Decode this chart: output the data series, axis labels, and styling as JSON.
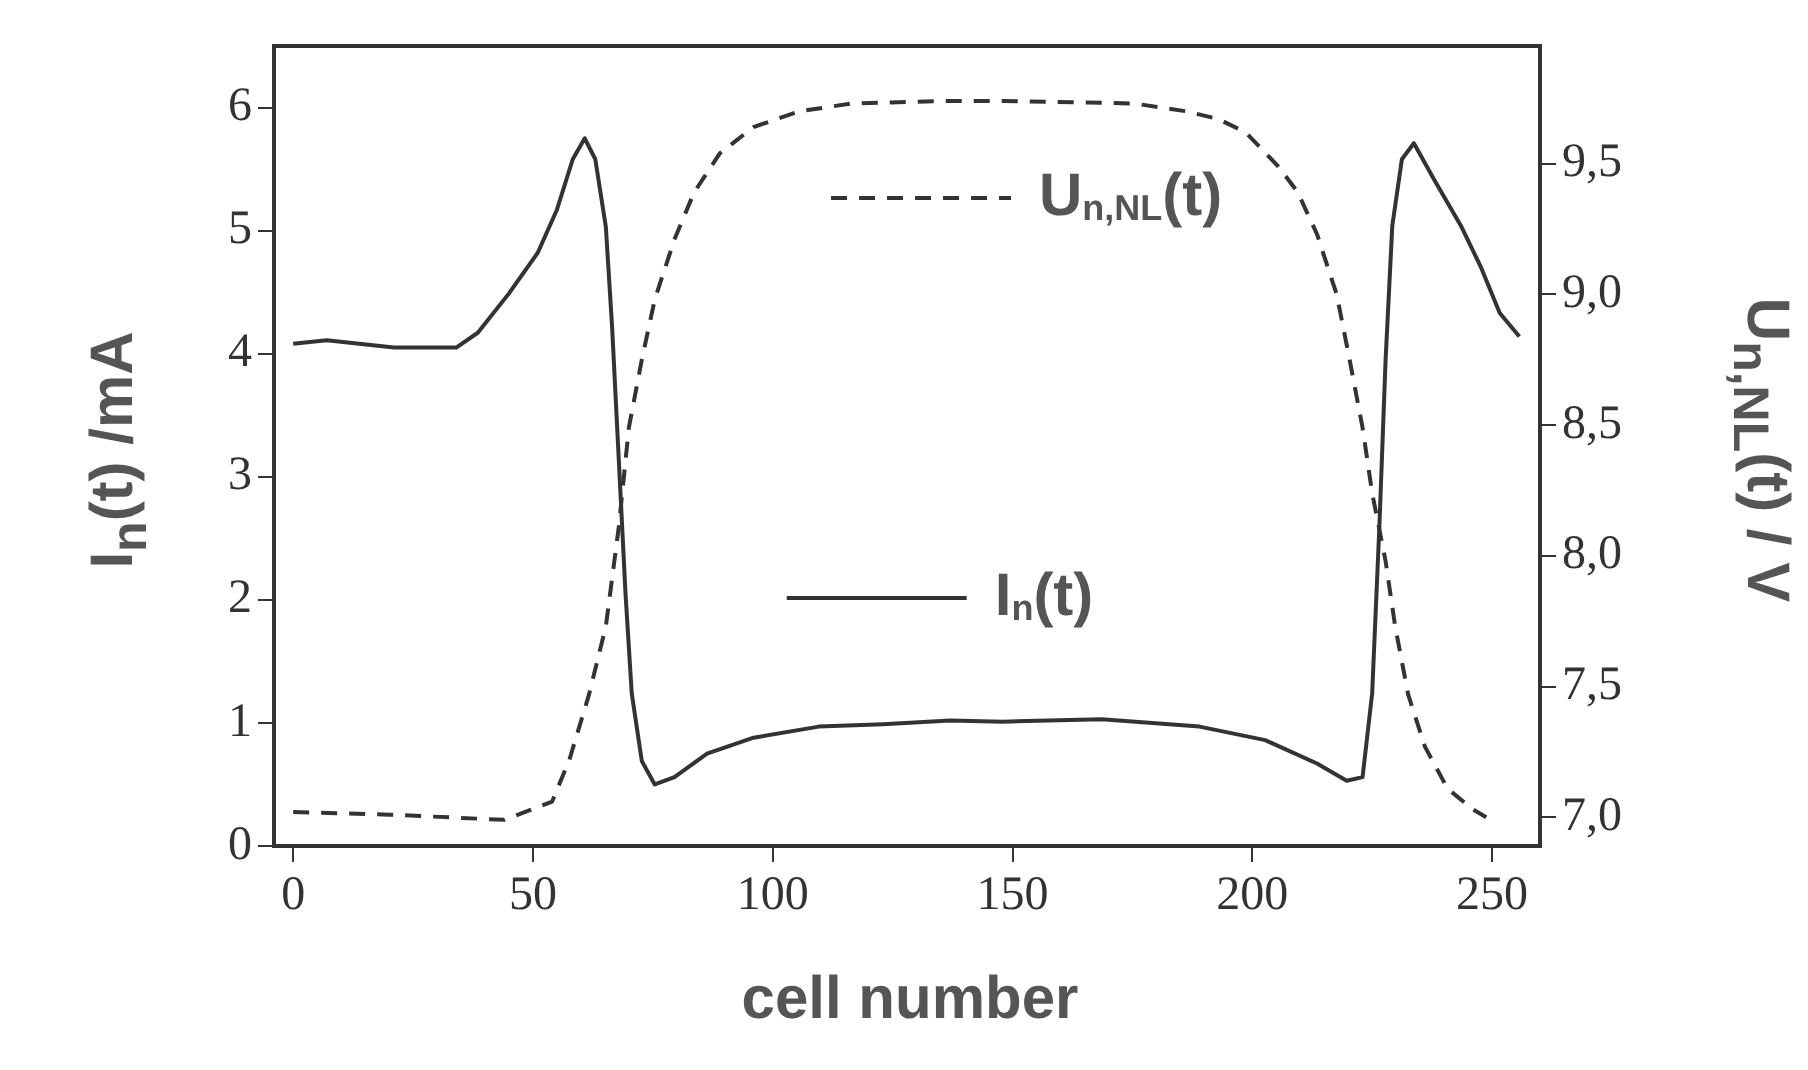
{
  "chart_data": {
    "type": "line",
    "xlabel": "cell number",
    "ylabel": "I$_{n}$(t) /mA",
    "y2label": "U$_{n,NL}$(t) / V",
    "xlim": [
      -4,
      260
    ],
    "xticks": [
      0,
      50,
      100,
      150,
      200,
      250
    ],
    "ylim": [
      0,
      6.5
    ],
    "yticks": [
      0,
      1,
      2,
      3,
      4,
      5,
      6
    ],
    "y2lim": [
      6.89,
      9.95
    ],
    "y2ticks": [
      {
        "value": 7,
        "label": "7,0"
      },
      {
        "value": 7.5,
        "label": "7,5"
      },
      {
        "value": 8,
        "label": "8,0"
      },
      {
        "value": 8.5,
        "label": "8,5"
      },
      {
        "value": 9,
        "label": "9,0"
      },
      {
        "value": 9.5,
        "label": "9,5"
      }
    ],
    "grid": false,
    "legend": "center",
    "marker": "none",
    "series": [
      {
        "name": "I$_{n}$(t)",
        "color": "#333333",
        "line_style": "solid",
        "x": [
          0,
          7,
          21,
          34,
          38.5,
          45,
          51,
          55,
          58.3,
          60.8,
          63,
          65.2,
          66.5,
          67.9,
          69.3,
          70.6,
          72.7,
          75.4,
          79.5,
          86.3,
          96,
          109.6,
          123,
          137,
          148,
          168.6,
          189,
          202.7,
          213.5,
          219.7,
          223,
          225,
          226.5,
          227.8,
          229.2,
          231.2,
          233.7,
          238,
          243.5,
          247.6,
          251.6,
          255.7
        ],
        "values": [
          4.08,
          4.11,
          4.05,
          4.05,
          4.17,
          4.49,
          4.82,
          5.17,
          5.58,
          5.75,
          5.58,
          5.03,
          4.22,
          3.14,
          2.05,
          1.24,
          0.69,
          0.5,
          0.56,
          0.75,
          0.88,
          0.97,
          0.99,
          1.02,
          1.01,
          1.03,
          0.97,
          0.86,
          0.67,
          0.53,
          0.56,
          1.24,
          2.59,
          3.95,
          5.04,
          5.58,
          5.71,
          5.41,
          5.04,
          4.71,
          4.33,
          4.14
        ]
      },
      {
        "name": "U$_{n,NL}$(t)",
        "color": "#333333",
        "line_style": "dashed",
        "axis": "y2",
        "x": [
          0,
          20,
          44,
          54,
          57.6,
          61.7,
          65.2,
          67.9,
          70,
          72.7,
          75.4,
          79.5,
          83.6,
          89,
          96,
          105.5,
          116.4,
          137,
          148,
          175.4,
          186.3,
          193,
          198.6,
          205.4,
          209.5,
          213.5,
          217.6,
          220.3,
          223,
          225,
          227.8,
          229.8,
          232.5,
          236,
          240.7,
          246,
          248.8
        ],
        "values": [
          7.02,
          7.01,
          6.99,
          7.06,
          7.22,
          7.47,
          7.73,
          8.11,
          8.49,
          8.75,
          8.98,
          9.21,
          9.39,
          9.54,
          9.64,
          9.7,
          9.73,
          9.74,
          9.74,
          9.73,
          9.7,
          9.67,
          9.62,
          9.49,
          9.39,
          9.23,
          9.0,
          8.75,
          8.49,
          8.24,
          7.98,
          7.73,
          7.47,
          7.27,
          7.11,
          7.03,
          7.0
        ]
      }
    ]
  }
}
